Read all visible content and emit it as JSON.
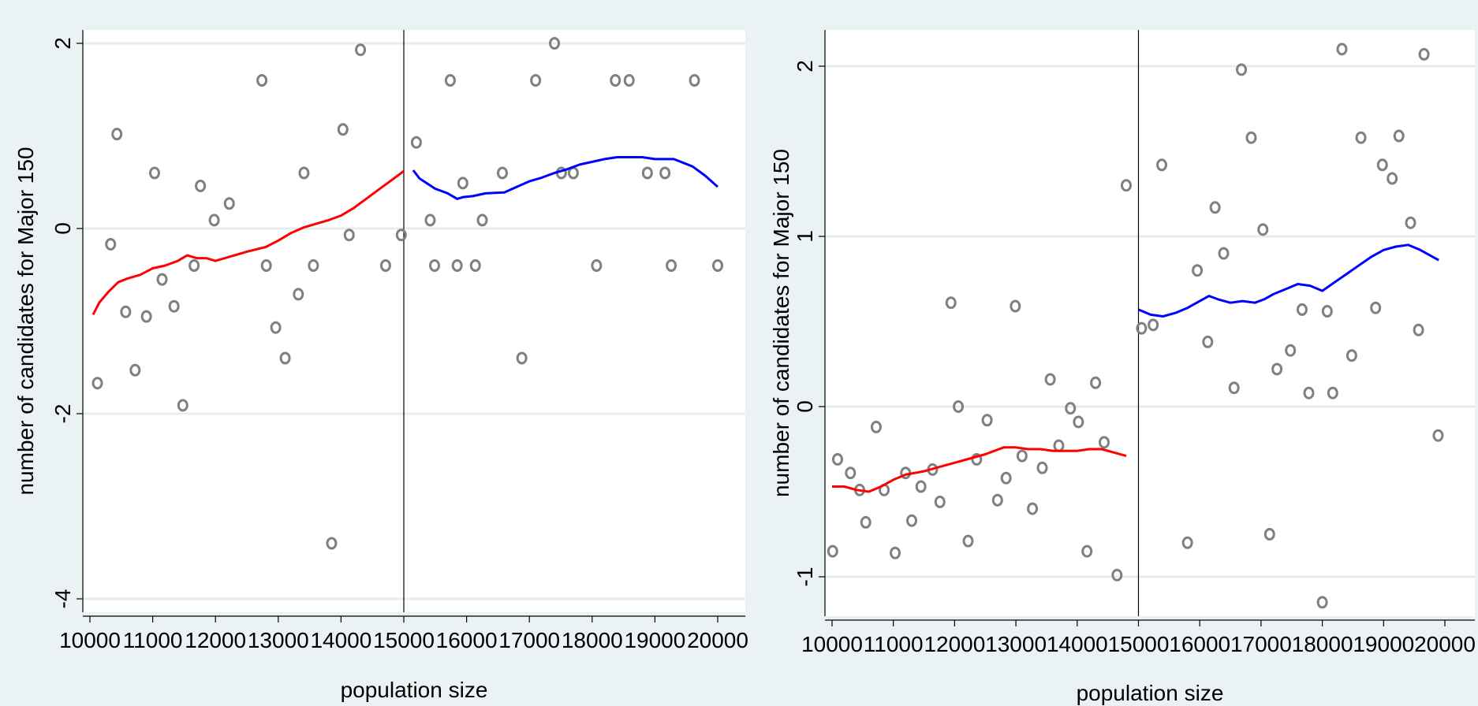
{
  "chart_data": [
    {
      "type": "scatter",
      "xlabel": "population size",
      "ylabel": "number of candidates for Major 150",
      "xlim": [
        10000,
        20000
      ],
      "ylim": [
        -4,
        2
      ],
      "xticks": [
        10000,
        11000,
        12000,
        13000,
        14000,
        15000,
        16000,
        17000,
        18000,
        19000,
        20000
      ],
      "xtick_labels": [
        "10000",
        "11000",
        "12000",
        "13000",
        "14000",
        "15000",
        "16000",
        "17000",
        "18000",
        "19000",
        "20000"
      ],
      "yticks": [
        -4,
        -2,
        0,
        2
      ],
      "ytick_labels": [
        "-4",
        "-2",
        "0",
        "2"
      ],
      "cutoff": 15000,
      "grid": true,
      "points": [
        [
          10120,
          -1.67
        ],
        [
          10330,
          -0.17
        ],
        [
          10430,
          1.02
        ],
        [
          10570,
          -0.9
        ],
        [
          10720,
          -1.53
        ],
        [
          10900,
          -0.95
        ],
        [
          11030,
          0.6
        ],
        [
          11150,
          -0.55
        ],
        [
          11340,
          -0.84
        ],
        [
          11480,
          -1.91
        ],
        [
          11660,
          -0.4
        ],
        [
          11760,
          0.46
        ],
        [
          11980,
          0.09
        ],
        [
          12220,
          0.27
        ],
        [
          12740,
          1.6
        ],
        [
          12810,
          -0.4
        ],
        [
          12960,
          -1.07
        ],
        [
          13110,
          -1.4
        ],
        [
          13320,
          -0.71
        ],
        [
          13410,
          0.6
        ],
        [
          13560,
          -0.4
        ],
        [
          13850,
          -3.4
        ],
        [
          14030,
          1.07
        ],
        [
          14130,
          -0.07
        ],
        [
          14310,
          1.93
        ],
        [
          14710,
          -0.4
        ],
        [
          14960,
          -0.07
        ],
        [
          15200,
          0.93
        ],
        [
          15420,
          0.09
        ],
        [
          15490,
          -0.4
        ],
        [
          15740,
          1.6
        ],
        [
          15850,
          -0.4
        ],
        [
          15940,
          0.49
        ],
        [
          16140,
          -0.4
        ],
        [
          16250,
          0.09
        ],
        [
          16570,
          0.6
        ],
        [
          16880,
          -1.4
        ],
        [
          17100,
          1.6
        ],
        [
          17400,
          2.0
        ],
        [
          17510,
          0.6
        ],
        [
          17700,
          0.6
        ],
        [
          18070,
          -0.4
        ],
        [
          18370,
          1.6
        ],
        [
          18590,
          1.6
        ],
        [
          18880,
          0.6
        ],
        [
          19160,
          0.6
        ],
        [
          19260,
          -0.4
        ],
        [
          19630,
          1.6
        ],
        [
          20000,
          -0.4
        ]
      ],
      "series": [
        {
          "color": "#ff0000",
          "x": [
            10050,
            10150,
            10300,
            10450,
            10600,
            10800,
            11000,
            11200,
            11400,
            11550,
            11700,
            11850,
            12000,
            12200,
            12500,
            12800,
            13000,
            13200,
            13400,
            13600,
            13800,
            14000,
            14200,
            14400,
            14600,
            14800,
            15000
          ],
          "y": [
            -0.93,
            -0.8,
            -0.68,
            -0.58,
            -0.54,
            -0.5,
            -0.43,
            -0.4,
            -0.35,
            -0.29,
            -0.32,
            -0.32,
            -0.35,
            -0.31,
            -0.25,
            -0.2,
            -0.13,
            -0.05,
            0.01,
            0.05,
            0.09,
            0.14,
            0.22,
            0.32,
            0.42,
            0.52,
            0.62
          ]
        },
        {
          "color": "#0000ff",
          "x": [
            15150,
            15250,
            15500,
            15700,
            15850,
            15950,
            16100,
            16300,
            16600,
            16800,
            17000,
            17200,
            17400,
            17600,
            17800,
            18000,
            18200,
            18400,
            18600,
            18800,
            19000,
            19300,
            19600,
            19800,
            20000
          ],
          "y": [
            0.63,
            0.54,
            0.43,
            0.38,
            0.32,
            0.34,
            0.35,
            0.38,
            0.39,
            0.45,
            0.51,
            0.55,
            0.6,
            0.64,
            0.69,
            0.72,
            0.75,
            0.77,
            0.77,
            0.77,
            0.75,
            0.75,
            0.67,
            0.57,
            0.45
          ]
        }
      ]
    },
    {
      "type": "scatter",
      "xlabel": "population size",
      "ylabel": "number of candidates for Major 150",
      "xlim": [
        10000,
        20000
      ],
      "ylim": [
        -1,
        2
      ],
      "xticks": [
        10000,
        11000,
        12000,
        13000,
        14000,
        15000,
        16000,
        17000,
        18000,
        19000,
        20000
      ],
      "xtick_labels": [
        "10000",
        "11000",
        "12000",
        "13000",
        "14000",
        "15000",
        "16000",
        "17000",
        "18000",
        "19000",
        "20000"
      ],
      "yticks": [
        -1,
        0,
        1,
        2
      ],
      "ytick_labels": [
        "-1",
        "0",
        "1",
        "2"
      ],
      "cutoff": 15000,
      "grid": true,
      "points": [
        [
          10010,
          -0.85
        ],
        [
          10090,
          -0.31
        ],
        [
          10300,
          -0.39
        ],
        [
          10450,
          -0.49
        ],
        [
          10550,
          -0.68
        ],
        [
          10720,
          -0.12
        ],
        [
          10850,
          -0.49
        ],
        [
          11030,
          -0.86
        ],
        [
          11200,
          -0.39
        ],
        [
          11300,
          -0.67
        ],
        [
          11450,
          -0.47
        ],
        [
          11640,
          -0.37
        ],
        [
          11760,
          -0.56
        ],
        [
          11940,
          0.61
        ],
        [
          12060,
          0.0
        ],
        [
          12220,
          -0.79
        ],
        [
          12360,
          -0.31
        ],
        [
          12530,
          -0.08
        ],
        [
          12700,
          -0.55
        ],
        [
          12840,
          -0.42
        ],
        [
          12990,
          0.59
        ],
        [
          13100,
          -0.29
        ],
        [
          13270,
          -0.6
        ],
        [
          13430,
          -0.36
        ],
        [
          13560,
          0.16
        ],
        [
          13700,
          -0.23
        ],
        [
          13890,
          -0.01
        ],
        [
          14020,
          -0.09
        ],
        [
          14160,
          -0.85
        ],
        [
          14300,
          0.14
        ],
        [
          14440,
          -0.21
        ],
        [
          14650,
          -0.99
        ],
        [
          14800,
          1.3
        ],
        [
          15050,
          0.46
        ],
        [
          15240,
          0.48
        ],
        [
          15380,
          1.42
        ],
        [
          15800,
          -0.8
        ],
        [
          15960,
          0.8
        ],
        [
          16130,
          0.38
        ],
        [
          16250,
          1.17
        ],
        [
          16390,
          0.9
        ],
        [
          16560,
          0.11
        ],
        [
          16680,
          1.98
        ],
        [
          16840,
          1.58
        ],
        [
          17030,
          1.04
        ],
        [
          17140,
          -0.75
        ],
        [
          17260,
          0.22
        ],
        [
          17480,
          0.33
        ],
        [
          17670,
          0.57
        ],
        [
          17780,
          0.08
        ],
        [
          18000,
          -1.15
        ],
        [
          18080,
          0.56
        ],
        [
          18170,
          0.08
        ],
        [
          18320,
          2.1
        ],
        [
          18480,
          0.3
        ],
        [
          18630,
          1.58
        ],
        [
          18870,
          0.58
        ],
        [
          18980,
          1.42
        ],
        [
          19140,
          1.34
        ],
        [
          19250,
          1.59
        ],
        [
          19440,
          1.08
        ],
        [
          19570,
          0.45
        ],
        [
          19660,
          2.07
        ],
        [
          19890,
          -0.17
        ]
      ],
      "series": [
        {
          "color": "#ff0000",
          "x": [
            10000,
            10200,
            10400,
            10600,
            10800,
            11000,
            11200,
            11500,
            11800,
            12000,
            12200,
            12500,
            12800,
            13000,
            13200,
            13400,
            13600,
            13800,
            14000,
            14200,
            14400,
            14600,
            14800
          ],
          "y": [
            -0.47,
            -0.47,
            -0.49,
            -0.5,
            -0.47,
            -0.43,
            -0.4,
            -0.38,
            -0.35,
            -0.33,
            -0.31,
            -0.28,
            -0.24,
            -0.24,
            -0.25,
            -0.25,
            -0.26,
            -0.26,
            -0.26,
            -0.25,
            -0.25,
            -0.27,
            -0.29
          ]
        },
        {
          "color": "#0000ff",
          "x": [
            15000,
            15200,
            15400,
            15600,
            15800,
            16000,
            16150,
            16300,
            16500,
            16700,
            16900,
            17050,
            17200,
            17400,
            17600,
            17800,
            18000,
            18200,
            18400,
            18600,
            18800,
            19000,
            19200,
            19400,
            19600,
            19900
          ],
          "y": [
            0.57,
            0.54,
            0.53,
            0.55,
            0.58,
            0.62,
            0.65,
            0.63,
            0.61,
            0.62,
            0.61,
            0.63,
            0.66,
            0.69,
            0.72,
            0.71,
            0.68,
            0.73,
            0.78,
            0.83,
            0.88,
            0.92,
            0.94,
            0.95,
            0.92,
            0.86
          ]
        }
      ]
    }
  ]
}
